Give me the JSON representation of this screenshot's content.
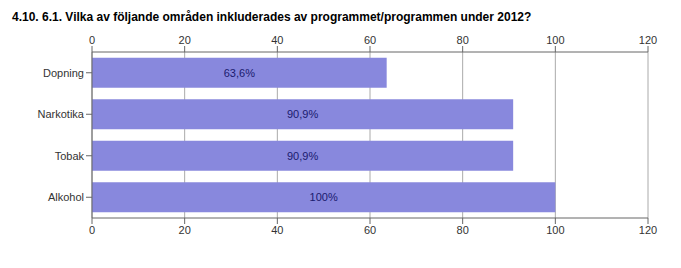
{
  "chart_data": {
    "type": "bar",
    "title": "4.10. 6.1. Vilka av följande områden inkluderades av programmet/programmen under 2012?",
    "orientation": "horizontal",
    "categories": [
      "Alkohol",
      "Tobak",
      "Narkotika",
      "Dopning"
    ],
    "values": [
      100.0,
      90.9,
      90.9,
      63.6
    ],
    "value_labels": [
      "100%",
      "90,9%",
      "90,9%",
      "63,6%"
    ],
    "data_labels": true,
    "color": "#8888dd",
    "xlim": [
      0,
      120
    ],
    "xticks": [
      0,
      20,
      40,
      60,
      80,
      100,
      120
    ],
    "grid": true
  }
}
